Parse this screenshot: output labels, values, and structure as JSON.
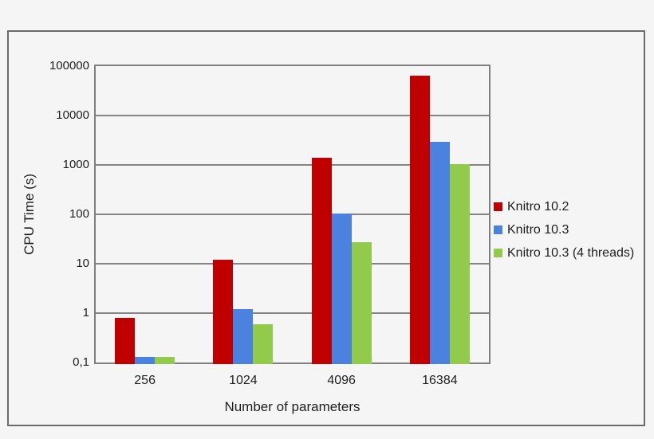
{
  "chart_data": {
    "type": "bar",
    "title": "",
    "xlabel": "Number of parameters",
    "ylabel": "CPU Time (s)",
    "y_scale": "log",
    "ylim": [
      0.1,
      100000
    ],
    "y_ticks": [
      {
        "value": 100000,
        "label": "100000"
      },
      {
        "value": 10000,
        "label": "10000"
      },
      {
        "value": 1000,
        "label": "1000"
      },
      {
        "value": 100,
        "label": "100"
      },
      {
        "value": 10,
        "label": "10"
      },
      {
        "value": 1,
        "label": "1"
      },
      {
        "value": 0.1,
        "label": "0,1"
      }
    ],
    "categories": [
      "256",
      "1024",
      "4096",
      "16384"
    ],
    "series": [
      {
        "name": "Knitro 10.2",
        "color": "#c00000",
        "values": [
          0.8,
          12,
          1400,
          65000
        ]
      },
      {
        "name": "Knitro 10.3",
        "color": "#4b82e0",
        "values": [
          0.13,
          1.2,
          105,
          2900
        ]
      },
      {
        "name": "Knitro 10.3 (4 threads)",
        "color": "#92ca4c",
        "values": [
          0.13,
          0.6,
          27,
          1050
        ]
      }
    ],
    "legend_position": "right",
    "grid": "horizontal-gridlines"
  },
  "style": {
    "text_color": "#1f1f1f",
    "grid_color": "#848484",
    "frame_border_color": "#6b6b6b",
    "plot_border_color": "#7f7f7f",
    "background": "#f5f5f5"
  }
}
